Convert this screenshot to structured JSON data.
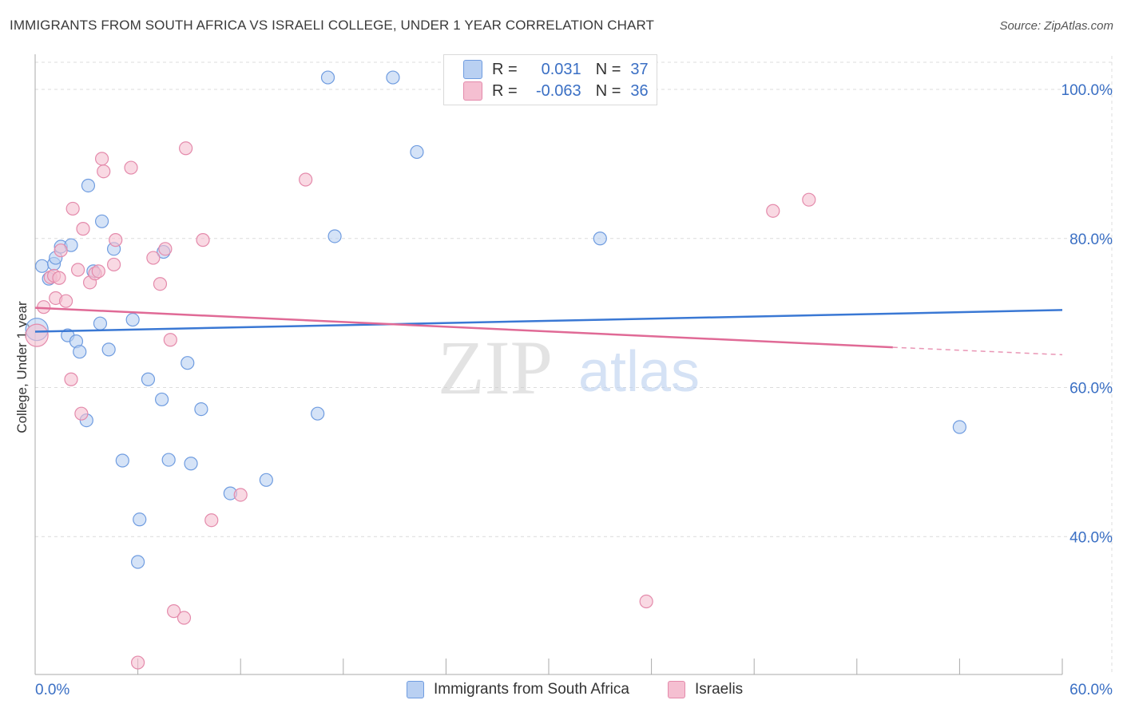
{
  "title": "IMMIGRANTS FROM SOUTH AFRICA VS ISRAELI COLLEGE, UNDER 1 YEAR CORRELATION CHART",
  "source": "Source: ZipAtlas.com",
  "watermark": {
    "zip": "ZIP",
    "atlas": "atlas"
  },
  "colors": {
    "blue": "#3a78d4",
    "blue_fill": "#b9d0f2",
    "pink": "#e06a96",
    "pink_fill": "#f5bfd1",
    "axis_text": "#3a6fc4",
    "grid": "#dcdcdc"
  },
  "legend": {
    "rows": [
      {
        "r_label": "R =",
        "r_value": "0.031",
        "n_label": "N =",
        "n_value": "37"
      },
      {
        "r_label": "R =",
        "r_value": "-0.063",
        "n_label": "N =",
        "n_value": "36"
      }
    ]
  },
  "bottom_legend": {
    "blue": "Immigrants from South Africa",
    "pink": "Israelis"
  },
  "chart_data": {
    "type": "scatter",
    "title": "IMMIGRANTS FROM SOUTH AFRICA VS ISRAELI COLLEGE, UNDER 1 YEAR CORRELATION CHART",
    "xlabel": "",
    "ylabel": "College, Under 1 year",
    "xlim": [
      0,
      60
    ],
    "ylim": [
      21.5,
      104.5
    ],
    "x_tick_labels": [
      "0.0%",
      "60.0%"
    ],
    "y_ticks": [
      40,
      60,
      80,
      100
    ],
    "y_tick_labels": [
      "40.0%",
      "60.0%",
      "80.0%",
      "100.0%"
    ],
    "series": [
      {
        "name": "Immigrants from South Africa",
        "color": "#3a78d4",
        "points": [
          [
            0.1,
            67.8
          ],
          [
            0.4,
            76.3
          ],
          [
            0.8,
            74.6
          ],
          [
            1.1,
            76.6
          ],
          [
            1.2,
            77.4
          ],
          [
            1.5,
            78.9
          ],
          [
            2.1,
            79.1
          ],
          [
            1.9,
            67.0
          ],
          [
            2.4,
            66.2
          ],
          [
            2.6,
            64.8
          ],
          [
            3.0,
            55.6
          ],
          [
            3.1,
            87.1
          ],
          [
            3.4,
            75.6
          ],
          [
            3.8,
            68.6
          ],
          [
            3.9,
            82.3
          ],
          [
            4.3,
            65.1
          ],
          [
            4.6,
            78.6
          ],
          [
            5.1,
            50.2
          ],
          [
            5.7,
            69.1
          ],
          [
            6.0,
            36.6
          ],
          [
            6.1,
            42.3
          ],
          [
            6.6,
            61.1
          ],
          [
            7.4,
            58.4
          ],
          [
            7.5,
            78.2
          ],
          [
            7.8,
            50.3
          ],
          [
            8.9,
            63.3
          ],
          [
            9.1,
            49.8
          ],
          [
            9.7,
            57.1
          ],
          [
            11.4,
            45.8
          ],
          [
            13.5,
            47.6
          ],
          [
            16.5,
            56.5
          ],
          [
            17.1,
            101.6
          ],
          [
            17.5,
            80.3
          ],
          [
            20.9,
            101.6
          ],
          [
            22.3,
            91.6
          ],
          [
            33.0,
            80.0
          ],
          [
            54.0,
            54.7
          ]
        ],
        "trend": {
          "x": [
            0,
            60
          ],
          "y": [
            67.5,
            70.4
          ]
        }
      },
      {
        "name": "Israelis",
        "color": "#e06a96",
        "points": [
          [
            0.1,
            67.0
          ],
          [
            0.5,
            70.8
          ],
          [
            0.9,
            74.8
          ],
          [
            1.1,
            75.0
          ],
          [
            1.2,
            72.0
          ],
          [
            1.4,
            74.7
          ],
          [
            1.8,
            71.6
          ],
          [
            1.5,
            78.4
          ],
          [
            2.1,
            61.1
          ],
          [
            2.2,
            84.0
          ],
          [
            2.5,
            75.8
          ],
          [
            2.7,
            56.5
          ],
          [
            2.8,
            81.3
          ],
          [
            3.2,
            74.1
          ],
          [
            3.5,
            75.3
          ],
          [
            3.7,
            75.6
          ],
          [
            3.9,
            90.7
          ],
          [
            4.0,
            89.0
          ],
          [
            4.6,
            76.5
          ],
          [
            4.7,
            79.8
          ],
          [
            5.6,
            89.5
          ],
          [
            6.0,
            23.1
          ],
          [
            6.9,
            77.4
          ],
          [
            7.3,
            73.9
          ],
          [
            7.6,
            78.6
          ],
          [
            7.9,
            66.4
          ],
          [
            8.1,
            30.0
          ],
          [
            8.7,
            29.1
          ],
          [
            8.8,
            92.1
          ],
          [
            9.8,
            79.8
          ],
          [
            10.3,
            42.2
          ],
          [
            12.0,
            45.6
          ],
          [
            15.8,
            87.9
          ],
          [
            35.7,
            31.3
          ],
          [
            43.1,
            83.7
          ],
          [
            45.2,
            85.2
          ]
        ],
        "trend": {
          "x": [
            0,
            50.1
          ],
          "y": [
            70.7,
            65.4
          ]
        },
        "trend_dashed": {
          "x": [
            50.1,
            60
          ],
          "y": [
            65.4,
            64.4
          ]
        }
      }
    ]
  }
}
